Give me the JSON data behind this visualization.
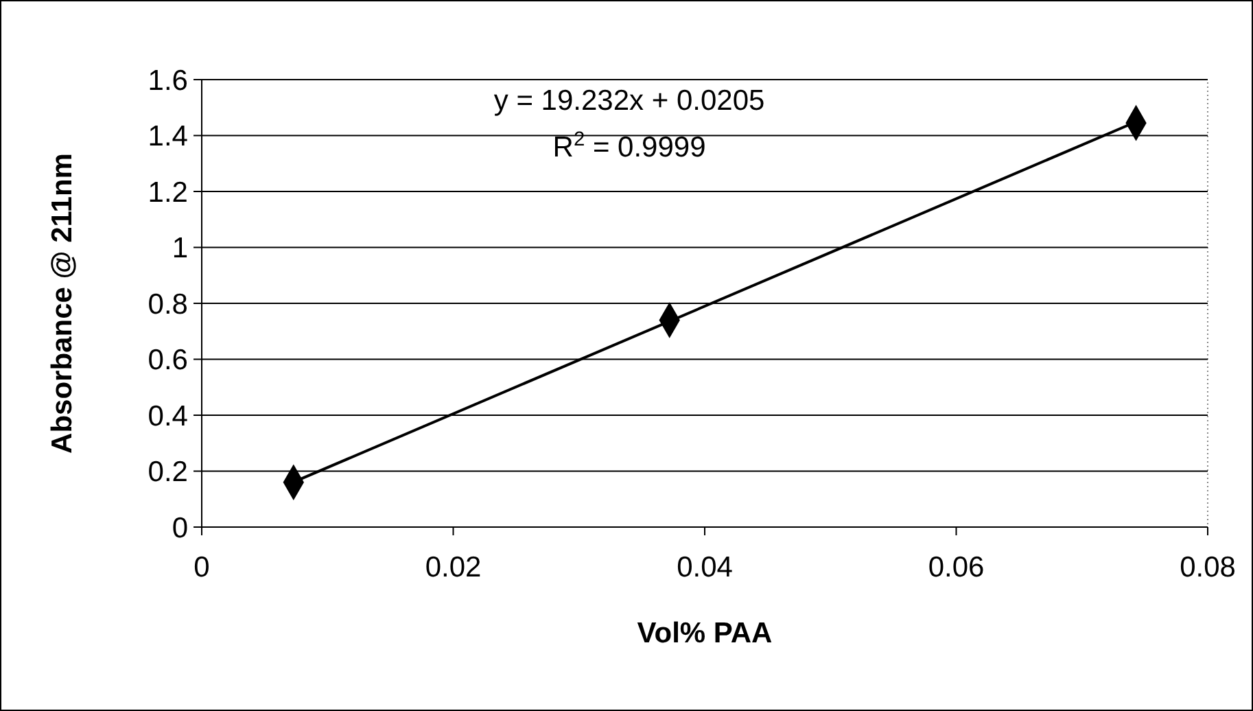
{
  "chart_data": {
    "type": "scatter",
    "xlabel": "Vol% PAA",
    "ylabel": "Absorbance @ 211nm",
    "xlim": [
      0,
      0.08
    ],
    "xticks": [
      0,
      0.02,
      0.04,
      0.06,
      0.08
    ],
    "ylim": [
      0,
      1.6
    ],
    "yticks": [
      0,
      0.2,
      0.4,
      0.6,
      0.8,
      1,
      1.2,
      1.4,
      1.6
    ],
    "grid": "y",
    "marker": "diamond",
    "series": [
      {
        "color": "#000000",
        "x": [
          0.0073,
          0.0372,
          0.0743
        ],
        "values": [
          0.16,
          0.74,
          1.445
        ]
      },
      {
        "type": "line",
        "color": "#000000",
        "x": [
          0.0073,
          0.0743
        ],
        "values": [
          0.161,
          1.449
        ],
        "line_style": "solid",
        "marker": "none"
      }
    ],
    "annotations": [
      "y = 19.232x + 0.0205",
      "R$^{2}$ = 0.9999"
    ]
  }
}
